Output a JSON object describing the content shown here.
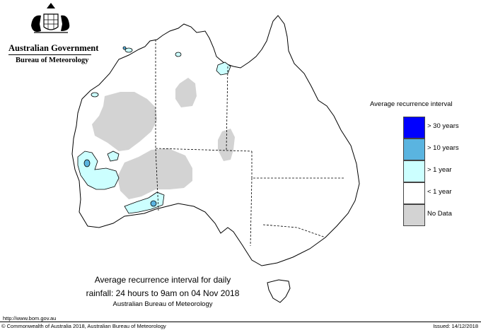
{
  "header": {
    "government": "Australian Government",
    "agency": "Bureau of Meteorology"
  },
  "legend": {
    "title": "Average recurrence interval",
    "items": [
      {
        "label": "> 30 years",
        "color": "#0000ff"
      },
      {
        "label": "> 10 years",
        "color": "#5ab4e0"
      },
      {
        "label": "> 1 year",
        "color": "#ccffff"
      },
      {
        "label": "< 1 year",
        "color": "#ffffff"
      },
      {
        "label": "No Data",
        "color": "#d3d3d3"
      }
    ]
  },
  "caption": {
    "line1": "Average recurrence interval for daily",
    "line2": "rainfall: 24 hours to 9am on 04 Nov 2018",
    "line3": "Australian Bureau of Meteorology"
  },
  "footer": {
    "url": "http://www.bom.gov.au",
    "copyright": "© Commonwealth of Australia 2018, Australian Bureau of Meteorology",
    "issued": "Issued: 14/12/2018"
  }
}
